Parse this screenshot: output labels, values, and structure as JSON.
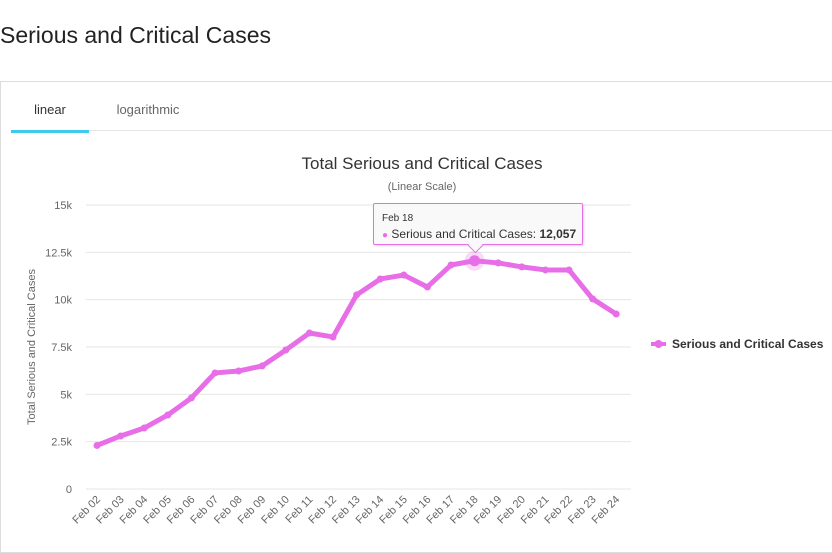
{
  "page": {
    "title": "Serious and Critical Cases"
  },
  "tabs": [
    {
      "label": "linear",
      "active": true
    },
    {
      "label": "logarithmic",
      "active": false
    }
  ],
  "tooltip": {
    "date": "Feb 18",
    "series": "Serious and Critical Cases: ",
    "value": "12,057"
  },
  "colors": {
    "series": "#e86ee8",
    "tab_indicator": "#3fc8f0",
    "grid": "#e6e6e6"
  },
  "chart_data": {
    "type": "line",
    "title": "Total Serious and Critical Cases",
    "subtitle": "(Linear Scale)",
    "xlabel": "",
    "ylabel": "Total Serious and Critical Cases",
    "ylim": [
      0,
      15000
    ],
    "yticks": [
      0,
      2500,
      5000,
      7500,
      10000,
      12500,
      15000
    ],
    "ytick_labels": [
      "0",
      "2.5k",
      "5k",
      "7.5k",
      "10k",
      "12.5k",
      "15k"
    ],
    "grid": true,
    "legend": "right",
    "categories": [
      "Feb 02",
      "Feb 03",
      "Feb 04",
      "Feb 05",
      "Feb 06",
      "Feb 07",
      "Feb 08",
      "Feb 09",
      "Feb 10",
      "Feb 11",
      "Feb 12",
      "Feb 13",
      "Feb 14",
      "Feb 15",
      "Feb 16",
      "Feb 17",
      "Feb 18",
      "Feb 19",
      "Feb 20",
      "Feb 21",
      "Feb 22",
      "Feb 23",
      "Feb 24"
    ],
    "series": [
      {
        "name": "Serious and Critical Cases",
        "values": [
          2300,
          2800,
          3220,
          3910,
          4810,
          6130,
          6230,
          6500,
          7340,
          8240,
          8030,
          10250,
          11090,
          11300,
          10670,
          11830,
          12057,
          11940,
          11730,
          11570,
          11570,
          10040,
          9240
        ]
      }
    ],
    "highlighted": {
      "category": "Feb 18",
      "value": 12057
    }
  }
}
